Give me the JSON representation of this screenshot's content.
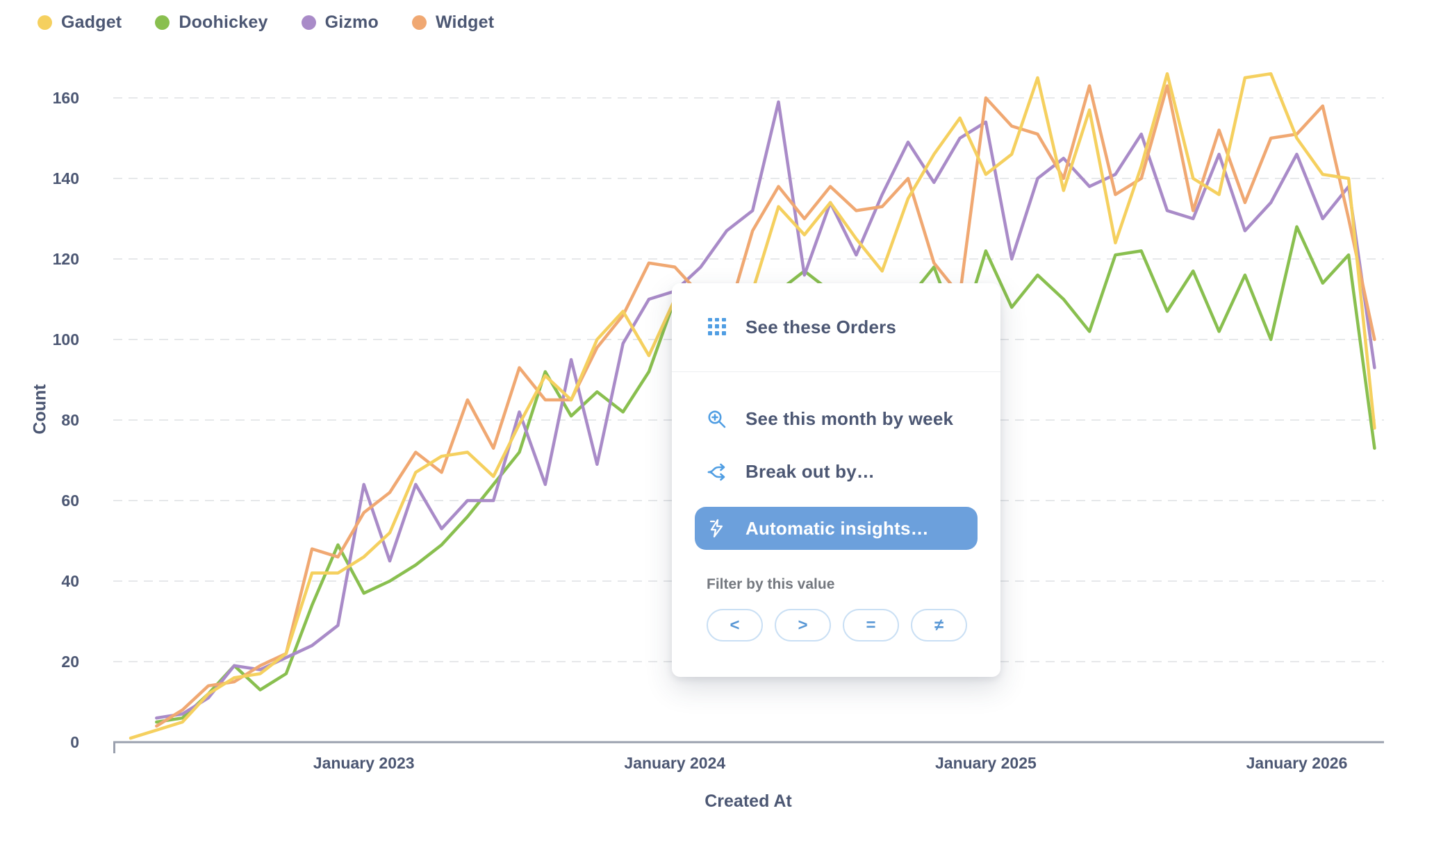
{
  "legend": {
    "items": [
      {
        "label": "Gadget",
        "color": "#F5D05F"
      },
      {
        "label": "Doohickey",
        "color": "#89BF4F"
      },
      {
        "label": "Gizmo",
        "color": "#A98BC8"
      },
      {
        "label": "Widget",
        "color": "#F0A872"
      }
    ]
  },
  "chart_data": {
    "type": "line",
    "title": "",
    "xlabel": "Created At",
    "ylabel": "Count",
    "ylim": [
      0,
      160
    ],
    "grid": "dashed-horizontal",
    "legend_position": "top-left",
    "yticks": [
      0,
      20,
      40,
      60,
      80,
      100,
      120,
      140,
      160
    ],
    "xticks": [
      {
        "label": "January 2023",
        "month_index": 9
      },
      {
        "label": "January 2024",
        "month_index": 21
      },
      {
        "label": "January 2025",
        "month_index": 33
      },
      {
        "label": "January 2026",
        "month_index": 45
      }
    ],
    "categories": [
      "Apr 2022",
      "May 2022",
      "Jun 2022",
      "Jul 2022",
      "Aug 2022",
      "Sep 2022",
      "Oct 2022",
      "Nov 2022",
      "Dec 2022",
      "Jan 2023",
      "Feb 2023",
      "Mar 2023",
      "Apr 2023",
      "May 2023",
      "Jun 2023",
      "Jul 2023",
      "Aug 2023",
      "Sep 2023",
      "Oct 2023",
      "Nov 2023",
      "Dec 2023",
      "Jan 2024",
      "Feb 2024",
      "Mar 2024",
      "Apr 2024",
      "May 2024",
      "Jun 2024",
      "Jul 2024",
      "Aug 2024",
      "Sep 2024",
      "Oct 2024",
      "Nov 2024",
      "Dec 2024",
      "Jan 2025",
      "Feb 2025",
      "Mar 2025",
      "Apr 2025",
      "May 2025",
      "Jun 2025",
      "Jul 2025",
      "Aug 2025",
      "Sep 2025",
      "Oct 2025",
      "Nov 2025",
      "Dec 2025",
      "Jan 2026",
      "Feb 2026",
      "Mar 2026",
      "Apr 2026"
    ],
    "series": [
      {
        "name": "Gadget",
        "color": "#F5D05F",
        "values": [
          1,
          3,
          5,
          12,
          16,
          17,
          22,
          42,
          42,
          46,
          52,
          67,
          71,
          72,
          66,
          79,
          91,
          85,
          100,
          107,
          96,
          110,
          105,
          108,
          112,
          133,
          126,
          134,
          125,
          117,
          135,
          146,
          155,
          141,
          146,
          165,
          137,
          157,
          124,
          143,
          166,
          140,
          136,
          165,
          166,
          150,
          141,
          140,
          78
        ]
      },
      {
        "name": "Doohickey",
        "color": "#89BF4F",
        "values": [
          null,
          5,
          6,
          12,
          19,
          13,
          17,
          34,
          49,
          37,
          40,
          44,
          49,
          56,
          64,
          72,
          92,
          81,
          87,
          82,
          92,
          110,
          112,
          103,
          110,
          112,
          117,
          112,
          106,
          102,
          110,
          118,
          101,
          122,
          108,
          116,
          110,
          102,
          121,
          122,
          107,
          117,
          102,
          116,
          100,
          128,
          114,
          121,
          73
        ]
      },
      {
        "name": "Gizmo",
        "color": "#A98BC8",
        "values": [
          null,
          6,
          7,
          11,
          19,
          18,
          21,
          24,
          29,
          64,
          45,
          64,
          53,
          60,
          60,
          82,
          64,
          95,
          69,
          99,
          110,
          112,
          118,
          127,
          132,
          159,
          116,
          134,
          121,
          136,
          149,
          139,
          150,
          154,
          120,
          140,
          145,
          138,
          141,
          151,
          132,
          130,
          146,
          127,
          134,
          146,
          130,
          138,
          93
        ]
      },
      {
        "name": "Widget",
        "color": "#F0A872",
        "values": [
          null,
          4,
          8,
          14,
          15,
          19,
          22,
          48,
          46,
          57,
          62,
          72,
          67,
          85,
          73,
          93,
          85,
          85,
          98,
          106,
          119,
          118,
          111,
          105,
          127,
          138,
          130,
          138,
          132,
          133,
          140,
          119,
          111,
          160,
          153,
          151,
          140,
          163,
          136,
          140,
          163,
          132,
          152,
          134,
          150,
          151,
          158,
          130,
          100
        ]
      }
    ]
  },
  "popup": {
    "items": [
      {
        "label": "See these Orders"
      },
      {
        "label": "See this month by week"
      },
      {
        "label": "Break out by…"
      },
      {
        "label": "Automatic insights…"
      }
    ],
    "filter_label": "Filter by this value",
    "operators": [
      "<",
      ">",
      "=",
      "≠"
    ],
    "accent_color": "#509EE3",
    "highlight_bg": "#6CA0DC"
  }
}
